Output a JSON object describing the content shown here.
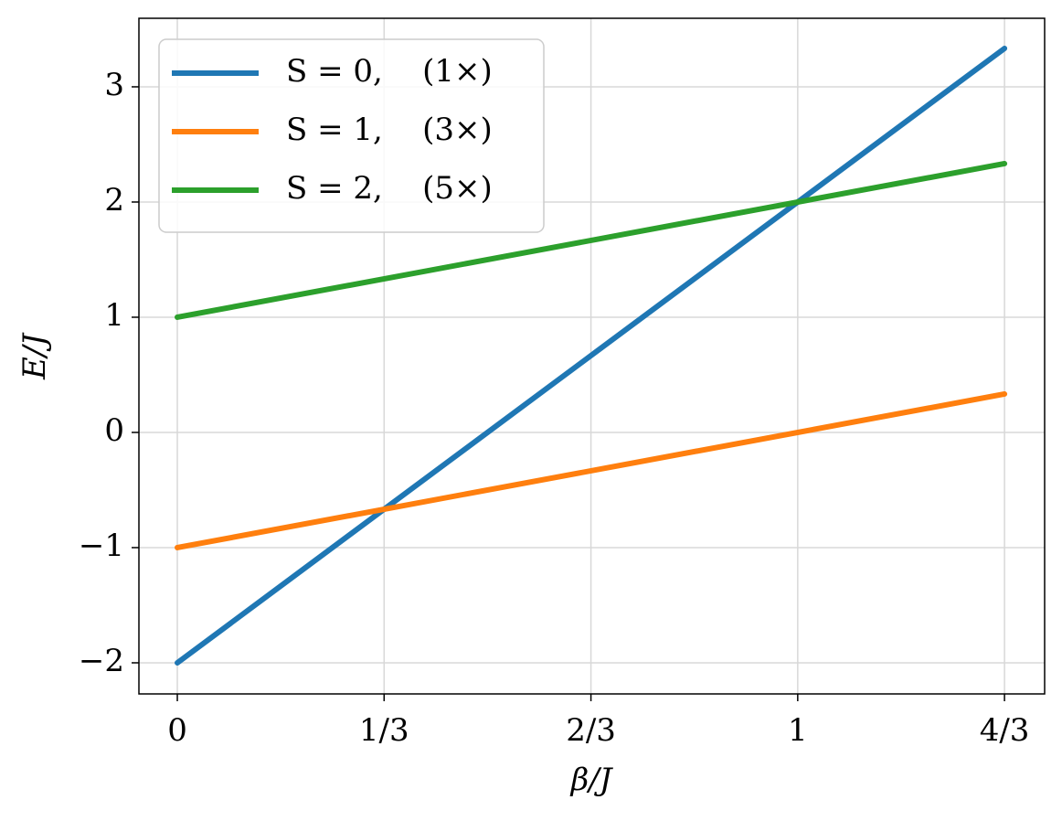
{
  "chart_data": {
    "type": "line",
    "x_label": "β/J",
    "y_label": "E/J",
    "x": [
      0,
      1.3333
    ],
    "series": [
      {
        "name": "S = 0,    (1×)",
        "color": "#1f77b4",
        "values": [
          -2,
          3.3333
        ]
      },
      {
        "name": "S = 1,    (3×)",
        "color": "#ff7f0e",
        "values": [
          -1,
          0.3333
        ]
      },
      {
        "name": "S = 2,    (5×)",
        "color": "#2ca02c",
        "values": [
          1,
          2.3333
        ]
      }
    ],
    "xlim": [
      -0.0619,
      1.398
    ],
    "ylim": [
      -2.27,
      3.595
    ],
    "xticks": [
      0,
      {
        "value": 0.3333,
        "label": "1/3"
      },
      {
        "value": 0.6667,
        "label": "2/3"
      },
      1,
      {
        "value": 1.3333,
        "label": "4/3"
      }
    ],
    "yticks": [
      {
        "value": -2,
        "label": "−2"
      },
      {
        "value": -1,
        "label": "−1"
      },
      0,
      1,
      2,
      3
    ],
    "grid": true,
    "legend": "upper left"
  }
}
